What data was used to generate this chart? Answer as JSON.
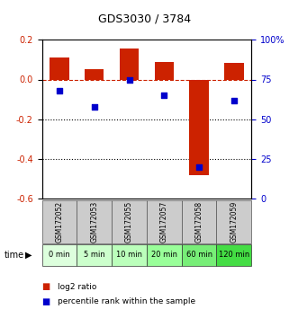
{
  "title": "GDS3030 / 3784",
  "samples": [
    "GSM172052",
    "GSM172053",
    "GSM172055",
    "GSM172057",
    "GSM172058",
    "GSM172059"
  ],
  "time_labels": [
    "0 min",
    "5 min",
    "10 min",
    "20 min",
    "60 min",
    "120 min"
  ],
  "log2_ratio": [
    0.11,
    0.05,
    0.155,
    0.09,
    -0.48,
    0.085
  ],
  "percentile_rank": [
    68,
    58,
    75,
    65,
    20,
    62
  ],
  "bar_color": "#cc2200",
  "dot_color": "#0000cc",
  "dashed_line_color": "#cc2200",
  "ylim_left": [
    -0.6,
    0.2
  ],
  "ylim_right": [
    0,
    100
  ],
  "yticks_left": [
    -0.6,
    -0.4,
    -0.2,
    0.0,
    0.2
  ],
  "yticks_right": [
    0,
    25,
    50,
    75,
    100
  ],
  "dotted_lines": [
    -0.2,
    -0.4
  ],
  "sample_header_bg": "#cccccc",
  "time_row_colors": [
    "#ddffdd",
    "#ccffcc",
    "#bbffbb",
    "#99ff99",
    "#77ee77",
    "#44dd44"
  ],
  "time_row_border": "#333333",
  "legend_log2_color": "#cc2200",
  "legend_pct_color": "#0000cc",
  "bar_width": 0.55,
  "dot_size": 18,
  "title_fontsize": 9,
  "tick_fontsize": 7,
  "sample_fontsize": 5.5,
  "time_fontsize": 6,
  "legend_fontsize": 6.5
}
